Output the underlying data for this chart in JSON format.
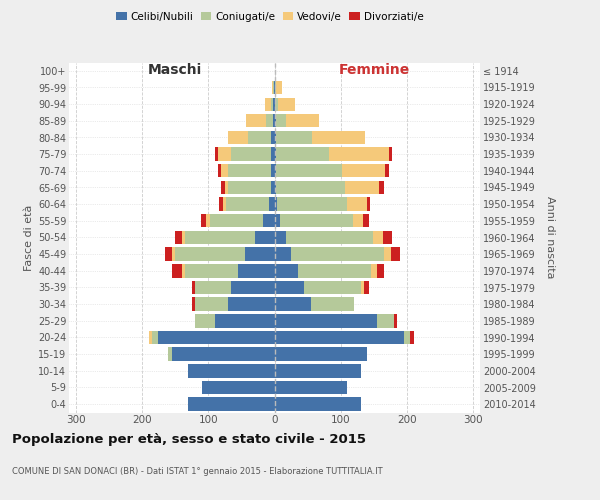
{
  "age_groups": [
    "100+",
    "95-99",
    "90-94",
    "85-89",
    "80-84",
    "75-79",
    "70-74",
    "65-69",
    "60-64",
    "55-59",
    "50-54",
    "45-49",
    "40-44",
    "35-39",
    "30-34",
    "25-29",
    "20-24",
    "15-19",
    "10-14",
    "5-9",
    "0-4"
  ],
  "birth_years": [
    "≤ 1914",
    "1915-1919",
    "1920-1924",
    "1925-1929",
    "1930-1934",
    "1935-1939",
    "1940-1944",
    "1945-1949",
    "1950-1954",
    "1955-1959",
    "1960-1964",
    "1965-1969",
    "1970-1974",
    "1975-1979",
    "1980-1984",
    "1985-1989",
    "1990-1994",
    "1995-1999",
    "2000-2004",
    "2005-2009",
    "2010-2014"
  ],
  "colors": {
    "celibe": "#4472a8",
    "coniugato": "#b5c99a",
    "vedovo": "#f5c97a",
    "divorziato": "#cc2020"
  },
  "maschi": {
    "celibe": [
      0,
      1,
      2,
      3,
      5,
      5,
      5,
      5,
      8,
      18,
      30,
      45,
      55,
      65,
      70,
      90,
      175,
      155,
      130,
      110,
      130
    ],
    "coniugato": [
      0,
      1,
      4,
      10,
      35,
      60,
      65,
      65,
      65,
      80,
      105,
      105,
      80,
      55,
      50,
      30,
      10,
      5,
      0,
      0,
      0
    ],
    "vedovo": [
      0,
      2,
      8,
      30,
      30,
      20,
      10,
      5,
      5,
      5,
      5,
      5,
      5,
      0,
      0,
      0,
      5,
      0,
      0,
      0,
      0
    ],
    "divorziato": [
      0,
      0,
      0,
      0,
      0,
      5,
      5,
      5,
      5,
      8,
      10,
      10,
      15,
      5,
      5,
      0,
      0,
      0,
      0,
      0,
      0
    ]
  },
  "femmine": {
    "nubile": [
      0,
      1,
      1,
      2,
      2,
      2,
      2,
      2,
      4,
      8,
      18,
      25,
      35,
      45,
      55,
      155,
      195,
      140,
      130,
      110,
      130
    ],
    "coniugata": [
      0,
      2,
      5,
      15,
      55,
      80,
      100,
      105,
      105,
      110,
      130,
      140,
      110,
      85,
      65,
      25,
      10,
      0,
      0,
      0,
      0
    ],
    "vedova": [
      1,
      8,
      25,
      50,
      80,
      90,
      65,
      50,
      30,
      15,
      15,
      10,
      10,
      5,
      0,
      0,
      0,
      0,
      0,
      0,
      0
    ],
    "divorziata": [
      0,
      0,
      0,
      0,
      0,
      5,
      5,
      8,
      5,
      10,
      15,
      15,
      10,
      8,
      0,
      5,
      5,
      0,
      0,
      0,
      0
    ]
  },
  "title": "Popolazione per età, sesso e stato civile - 2015",
  "subtitle": "COMUNE DI SAN DONACI (BR) - Dati ISTAT 1° gennaio 2015 - Elaborazione TUTTITALIA.IT",
  "maschi_label": "Maschi",
  "femmine_label": "Femmine",
  "ylabel_left": "Fasce di età",
  "ylabel_right": "Anni di nascita",
  "xlim": 310,
  "bg_color": "#eeeeee",
  "plot_bg": "#ffffff",
  "legend_labels": [
    "Celibi/Nubili",
    "Coniugati/e",
    "Vedovi/e",
    "Divorziati/e"
  ]
}
